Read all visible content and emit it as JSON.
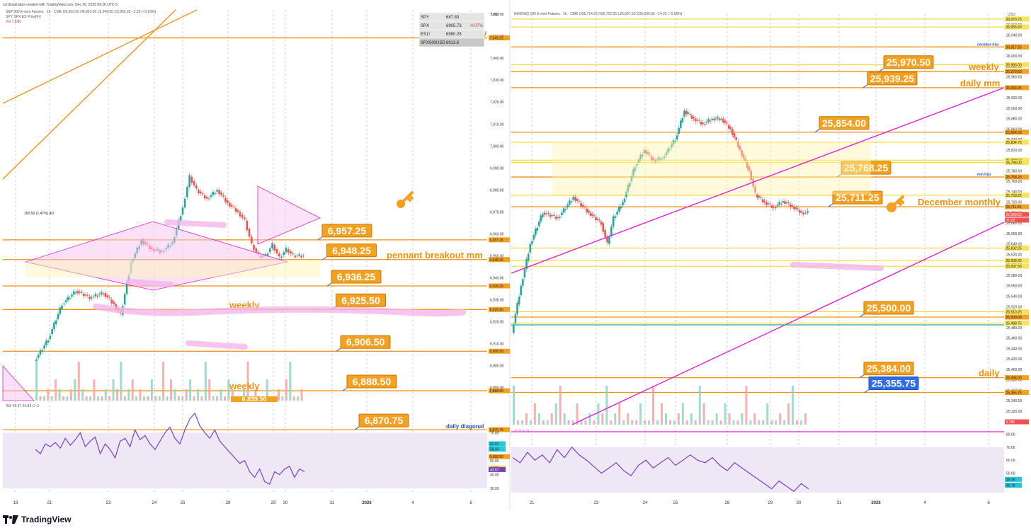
{
  "header": {
    "credit": "cordovatrades created with TradingView.com, Dec 30, 2025 09:26 UTC-5",
    "left_title": "S&P 500 E-mini Futures · 1h · CME",
    "left_ohlc": "O6,952.50 H6,953.50 L6,949.50 C6,950.25 −2.25 (−0.03%)",
    "left_sub": "SPY SPX ES Price[Fr]",
    "left_vol": "Vol  7.83K",
    "right_title": "NASDAQ 100 E-mini Futures · 1h · CME",
    "right_ohlc": "O25,714.25 H25,722.25 L25,697.50 C25,699.50 −14.25 (−0.06%)",
    "left_rsi": "RSI  43.57  44.83  ∅  ∅",
    "right_rsi_hint": "45.26  40.78",
    "footer": "TradingView",
    "currency": "USD"
  },
  "watchlist": [
    {
      "symbol": "SPY",
      "value": "687.83",
      "change": ""
    },
    {
      "symbol": "SPX",
      "value": "6905.73",
      "change": "-0.07%"
    },
    {
      "symbol": "ES1!",
      "value": "6950.25",
      "change": ""
    },
    {
      "symbol": "SPX500USD",
      "value": "6913.6",
      "change": ""
    }
  ],
  "colors": {
    "orange": "#f0910e",
    "callout_fill": "#f4a020",
    "callout_border": "#c47900",
    "yellow_line": "#f5d400",
    "magenta": "#e021d8",
    "pink_fill": "#f7c3ef",
    "pink_highlight": "#f4b5e8",
    "teal": "#26a69a",
    "red": "#ef5350",
    "blue_callout": "#2f6de8",
    "rsi_purple": "#7e3fbf",
    "rsi_band": "#ede7f6",
    "grid_dash": "#9fb6dc",
    "axis_text": "#333333"
  },
  "chart_data": [
    {
      "type": "candlestick",
      "title": "S&P 500 E-mini Futures · 1h · CME",
      "x_ticks": [
        "19",
        "21",
        "23",
        "24",
        "25",
        "28",
        "29",
        "30",
        "31",
        "2026",
        "4",
        "6"
      ],
      "price_ticks": [
        "7,060.00",
        "7,050.00",
        "7,040.00",
        "7,030.00",
        "7,020.00",
        "7,010.00",
        "7,000.00",
        "6,990.00",
        "6,980.00",
        "6,970.00",
        "6,960.00",
        "6,950.00",
        "6,940.00",
        "6,930.00",
        "6,920.00",
        "6,910.00",
        "6,900.00",
        "6,890.00"
      ],
      "ylim": [
        6884,
        7062
      ],
      "price_path": [
        [
          0,
          6902
        ],
        [
          8,
          6912
        ],
        [
          16,
          6928
        ],
        [
          24,
          6934
        ],
        [
          32,
          6931
        ],
        [
          40,
          6933
        ],
        [
          46,
          6928
        ],
        [
          50,
          6923
        ],
        [
          56,
          6947
        ],
        [
          62,
          6957
        ],
        [
          68,
          6953
        ],
        [
          74,
          6952
        ],
        [
          80,
          6956
        ],
        [
          86,
          6972
        ],
        [
          90,
          6986
        ],
        [
          94,
          6980
        ],
        [
          100,
          6976
        ],
        [
          106,
          6980
        ],
        [
          112,
          6974
        ],
        [
          118,
          6970
        ],
        [
          122,
          6966
        ],
        [
          126,
          6955
        ],
        [
          130,
          6950
        ],
        [
          134,
          6950
        ],
        [
          138,
          6955
        ],
        [
          142,
          6949
        ],
        [
          146,
          6953
        ],
        [
          150,
          6950
        ],
        [
          156,
          6950
        ]
      ],
      "levels": [
        {
          "price": 7049.25,
          "label": "7,049.25",
          "note": "daily"
        },
        {
          "price": 6957.25,
          "label": "6,957.25",
          "callout": "6,957.25"
        },
        {
          "price": 6948.25,
          "label": "6,948.25",
          "callout": "6,948.25",
          "note": "pennant breakout mm"
        },
        {
          "price": 6936.25,
          "label": "6,936.25",
          "callout": "6,936.25"
        },
        {
          "price": 6925.5,
          "label": "6,925.50",
          "callout": "6,925.50",
          "note": "weekly"
        },
        {
          "price": 6906.5,
          "label": "6,906.50",
          "callout": "6,906.50"
        },
        {
          "price": 6888.5,
          "label": "6,888.50",
          "callout": "6,888.50",
          "note": "weekly"
        },
        {
          "price": 6870.75,
          "label": "6,870.75",
          "callout": "6,870.75",
          "note": "daily diagonal"
        },
        {
          "price": 6858.5,
          "label": "6,858.50",
          "callout": "6,858.50"
        }
      ],
      "axis_badges": [
        "6,957.25",
        "6,950.25",
        "31:28",
        "6,948.25",
        "6,936.25",
        "6,925.50",
        "6,925.00",
        "6,915.50",
        "6,906.50",
        "6,900.50",
        "6,893.50",
        "6,891.75",
        "6,891.25",
        "6,889.00",
        "6,888.50",
        "6,870.75",
        "6,858.50",
        "7.83K"
      ],
      "partial_callout": "6,839.50",
      "annotation_range": "100.50 (1.47%) 4D",
      "rsi": {
        "ticks": [
          "70.00",
          "60.00",
          "50.00",
          "40.00",
          "30.00"
        ],
        "ylim": [
          26,
          86
        ],
        "badges": [
          "62.07",
          "58.33",
          "44.83",
          "43.57"
        ],
        "values": [
          58,
          55,
          62,
          60,
          63,
          59,
          66,
          61,
          65,
          70,
          60,
          64,
          67,
          55,
          62,
          58,
          52,
          64,
          66,
          60,
          72,
          65,
          68,
          62,
          58,
          64,
          70,
          74,
          66,
          62,
          72,
          80,
          84,
          75,
          70,
          66,
          72,
          64,
          60,
          56,
          52,
          48,
          50,
          42,
          38,
          44,
          35,
          33,
          42,
          40,
          44,
          46,
          38,
          44,
          42
        ]
      }
    },
    {
      "type": "candlestick",
      "title": "NASDAQ 100 E-mini Futures · 1h · CME",
      "x_ticks": [
        "21",
        "23",
        "24",
        "25",
        "28",
        "29",
        "30",
        "31",
        "2026",
        "4",
        "6"
      ],
      "price_ticks": [
        "26,060.00",
        "26,040.00",
        "26,020.00",
        "26,000.00",
        "25,980.00",
        "25,960.00",
        "25,940.00",
        "25,920.00",
        "25,900.00",
        "25,880.00",
        "25,860.00",
        "25,840.00",
        "25,820.00",
        "25,800.00",
        "25,780.00",
        "25,760.00",
        "25,740.00",
        "25,720.00",
        "25,700.00",
        "25,680.00",
        "25,660.00",
        "25,640.00",
        "25,620.00",
        "25,600.00",
        "25,580.00",
        "25,560.00",
        "25,540.00",
        "25,520.00",
        "25,500.00",
        "25,480.00",
        "25,460.00",
        "25,440.00",
        "25,420.00",
        "25,400.00",
        "25,380.00",
        "25,360.00",
        "25,340.00",
        "25,320.00",
        "25,300.00"
      ],
      "ylim": [
        25290,
        26080
      ],
      "price_path": [
        [
          0,
          25470
        ],
        [
          6,
          25560
        ],
        [
          12,
          25640
        ],
        [
          20,
          25700
        ],
        [
          30,
          25690
        ],
        [
          40,
          25730
        ],
        [
          50,
          25700
        ],
        [
          58,
          25680
        ],
        [
          62,
          25640
        ],
        [
          66,
          25690
        ],
        [
          72,
          25720
        ],
        [
          80,
          25790
        ],
        [
          86,
          25820
        ],
        [
          92,
          25800
        ],
        [
          98,
          25805
        ],
        [
          106,
          25840
        ],
        [
          112,
          25895
        ],
        [
          118,
          25880
        ],
        [
          124,
          25870
        ],
        [
          130,
          25880
        ],
        [
          136,
          25880
        ],
        [
          142,
          25860
        ],
        [
          148,
          25820
        ],
        [
          154,
          25780
        ],
        [
          158,
          25735
        ],
        [
          164,
          25720
        ],
        [
          170,
          25710
        ],
        [
          176,
          25722
        ],
        [
          182,
          25712
        ],
        [
          188,
          25700
        ],
        [
          192,
          25700
        ]
      ],
      "levels": [
        {
          "price": 26070.75,
          "label": "26,070.75"
        },
        {
          "price": 26055.5,
          "label": "26,055.50"
        },
        {
          "price": 26017.25,
          "label": "26,017.25",
          "note": "neckline h&s"
        },
        {
          "price": 25983.0,
          "label": "25,983.00"
        },
        {
          "price": 25970.5,
          "label": "25,970.50",
          "callout": "25,970.50",
          "note": "weekly"
        },
        {
          "price": 25939.25,
          "label": "25,939.25",
          "callout": "25,939.25",
          "note": "daily mm"
        },
        {
          "price": 25854.0,
          "label": "25,854.00",
          "callout": "25,854.00"
        },
        {
          "price": 25834.75,
          "label": "25,834.75"
        },
        {
          "price": 25800.5,
          "label": "25,800.50"
        },
        {
          "price": 25796.0,
          "label": "25,796.00"
        },
        {
          "price": 25768.25,
          "label": "25,768.25",
          "callout": "25,768.25",
          "note": "mm h&s"
        },
        {
          "price": 25733.25,
          "label": "25,733.25"
        },
        {
          "price": 25711.25,
          "label": "25,711.25",
          "callout": "25,711.25",
          "note": "December monthly"
        },
        {
          "price": 25632.25,
          "label": "25,632.25"
        },
        {
          "price": 25608.25,
          "label": "25,608.25"
        },
        {
          "price": 25597.5,
          "label": "25,597.50"
        },
        {
          "price": 25510.25,
          "label": "25,510.25"
        },
        {
          "price": 25500.0,
          "label": "25,500.00",
          "callout": "25,500.00"
        },
        {
          "price": 25488.75,
          "label": "25,488.75"
        },
        {
          "price": 25384.0,
          "label": "25,384.00",
          "callout": "25,384.00",
          "note": "daily"
        },
        {
          "price": 25355.75,
          "label": "25,355.75",
          "callout": "25,355.75"
        }
      ],
      "axis_badges": [
        "25,699.50",
        "31:28",
        "3.78K"
      ],
      "rsi": {
        "ticks": [
          "80.00",
          "70.00",
          "60.00",
          "50.00",
          "40.00"
        ],
        "ylim": [
          34,
          84
        ],
        "badges": [
          "45.26",
          "40.78"
        ],
        "values": [
          62,
          58,
          66,
          60,
          64,
          58,
          68,
          62,
          70,
          64,
          60,
          55,
          50,
          54,
          58,
          52,
          48,
          56,
          60,
          54,
          58,
          62,
          56,
          60,
          64,
          60,
          58,
          62,
          56,
          52,
          58,
          54,
          50,
          46,
          42,
          38,
          44,
          40,
          36,
          42,
          38
        ]
      }
    }
  ]
}
